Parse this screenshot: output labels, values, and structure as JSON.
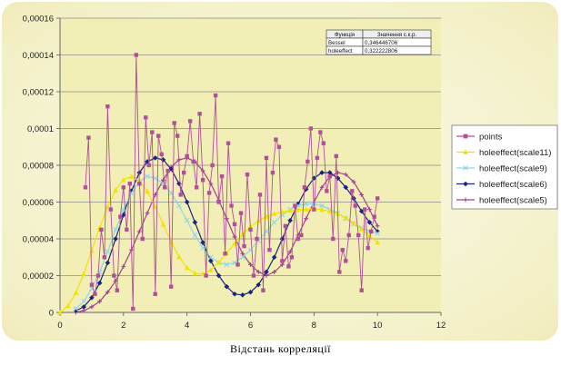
{
  "chart_data": {
    "type": "line",
    "xlabel": "Відстань корреляції",
    "ylabel": "",
    "xlim": [
      0,
      12
    ],
    "ylim": [
      0,
      0.00016
    ],
    "x_ticks": [
      "0",
      "2",
      "4",
      "6",
      "8",
      "10",
      "12"
    ],
    "y_ticks": [
      "0",
      "0,00002",
      "0,00004",
      "0,00006",
      "0,00008",
      "0,0001",
      "0,00012",
      "0,00014",
      "0,00016"
    ],
    "grid": "horizontal",
    "legend_position": "right",
    "plot_background": "#f2efb6",
    "info_table": {
      "headers": [
        "Функція",
        "Значення с.к.р."
      ],
      "rows": [
        [
          "Bessel",
          "0,346446706"
        ],
        [
          "holeeffect",
          "0,322222806"
        ]
      ]
    },
    "series": [
      {
        "name": "points",
        "color": "#b0509a",
        "marker": "square",
        "x": [
          0.8,
          0.9,
          1.0,
          1.1,
          1.2,
          1.3,
          1.4,
          1.5,
          1.6,
          1.7,
          1.8,
          1.9,
          2.0,
          2.1,
          2.2,
          2.3,
          2.4,
          2.5,
          2.6,
          2.7,
          2.8,
          2.9,
          3.0,
          3.1,
          3.2,
          3.3,
          3.4,
          3.5,
          3.6,
          3.7,
          3.8,
          3.9,
          4.0,
          4.1,
          4.2,
          4.3,
          4.4,
          4.5,
          4.6,
          4.7,
          4.8,
          4.9,
          5.0,
          5.1,
          5.2,
          5.3,
          5.4,
          5.5,
          5.6,
          5.7,
          5.8,
          5.9,
          6.0,
          6.1,
          6.2,
          6.3,
          6.4,
          6.5,
          6.6,
          6.7,
          6.8,
          6.9,
          7.0,
          7.1,
          7.2,
          7.3,
          7.4,
          7.5,
          7.6,
          7.7,
          7.8,
          7.9,
          8.0,
          8.1,
          8.2,
          8.3,
          8.4,
          8.5,
          8.6,
          8.7,
          8.8,
          8.9,
          9.0,
          9.1,
          9.2,
          9.3,
          9.4,
          9.5,
          9.6,
          9.7,
          9.8,
          9.9,
          10.0
        ],
        "y": [
          6.8e-05,
          9.5e-05,
          1.5e-05,
          1e-05,
          2e-05,
          4.5e-05,
          3e-05,
          0.000112,
          5.6e-05,
          2e-05,
          1.2e-05,
          5.2e-05,
          6.8e-05,
          4.5e-05,
          7e-05,
          2e-06,
          0.00014,
          7e-05,
          4e-05,
          0.000106,
          8e-05,
          9.8e-05,
          1e-05,
          9.6e-05,
          8.6e-05,
          6.8e-05,
          7.7e-05,
          1.4e-05,
          0.000103,
          9.6e-05,
          6.4e-05,
          7.6e-05,
          8.5e-05,
          0.000104,
          8.2e-05,
          6.8e-05,
          0.000108,
          7.2e-05,
          2e-05,
          6.5e-05,
          8e-05,
          0.000118,
          6e-05,
          7.4e-05,
          3.2e-05,
          9.2e-05,
          5.8e-05,
          4.8e-05,
          2.6e-05,
          5.4e-05,
          3.6e-05,
          7.5e-05,
          4.5e-05,
          2e-05,
          4e-05,
          6.4e-05,
          1.2e-05,
          8.4e-05,
          3.4e-05,
          7.6e-05,
          9.4e-05,
          9e-05,
          2.8e-05,
          4.7e-05,
          2.5e-05,
          3e-05,
          5.8e-05,
          4e-05,
          4.2e-05,
          6.8e-05,
          8.2e-05,
          0.0001,
          5.6e-05,
          8.4e-05,
          9.8e-05,
          9.2e-05,
          6.6e-05,
          7.4e-05,
          4e-05,
          8.5e-05,
          2.2e-05,
          3.4e-05,
          2.8e-05,
          4.2e-05,
          6.6e-05,
          5.8e-05,
          4.2e-05,
          1.2e-05,
          5.6e-05,
          3.5e-05,
          4.4e-05,
          5.2e-05,
          6.2e-05
        ]
      },
      {
        "name": "holeeffect(scale11)",
        "color": "#f2e200",
        "marker": "triangle",
        "x": [
          0,
          0.25,
          0.5,
          0.75,
          1,
          1.25,
          1.5,
          1.75,
          2,
          2.25,
          2.5,
          2.75,
          3,
          3.25,
          3.5,
          3.75,
          4,
          4.25,
          4.5,
          4.75,
          5,
          5.25,
          5.5,
          5.75,
          6,
          6.25,
          6.5,
          6.75,
          7,
          7.25,
          7.5,
          7.75,
          8,
          8.25,
          8.5,
          8.75,
          9,
          9.25,
          9.5,
          9.75,
          10
        ],
        "y": [
          0,
          3.5e-06,
          1.07e-05,
          2.1e-05,
          3.35e-05,
          4.61e-05,
          5.75e-05,
          6.65e-05,
          7.22e-05,
          7.39e-05,
          7.16e-05,
          6.58e-05,
          5.75e-05,
          4.79e-05,
          3.84e-05,
          3.02e-05,
          2.43e-05,
          2.12e-05,
          2.09e-05,
          2.31e-05,
          2.71e-05,
          3.22e-05,
          3.75e-05,
          4.24e-05,
          4.66e-05,
          4.98e-05,
          5.21e-05,
          5.37e-05,
          5.46e-05,
          5.53e-05,
          5.58e-05,
          5.61e-05,
          5.62e-05,
          5.59e-05,
          5.51e-05,
          5.36e-05,
          5.14e-05,
          4.85e-05,
          4.52e-05,
          4.16e-05,
          3.81e-05
        ]
      },
      {
        "name": "holeeffect(scale9)",
        "color": "#8fd6e8",
        "marker": "x",
        "x": [
          0.5,
          0.75,
          1,
          1.25,
          1.5,
          1.75,
          2,
          2.25,
          2.5,
          2.75,
          3,
          3.25,
          3.5,
          3.75,
          4,
          4.25,
          4.5,
          4.75,
          5,
          5.25,
          5.5,
          5.75,
          6,
          6.25,
          6.5,
          6.75,
          7,
          7.25,
          7.5,
          7.75,
          8,
          8.25,
          8.5,
          8.75,
          9,
          9.25,
          9.5,
          9.75,
          10
        ],
        "y": [
          2e-06,
          6e-06,
          1.3e-05,
          2.2e-05,
          3.3e-05,
          4.5e-05,
          5.6e-05,
          6.5e-05,
          7.1e-05,
          7.4e-05,
          7.3e-05,
          7e-05,
          6.5e-05,
          5.8e-05,
          5e-05,
          4.2e-05,
          3.5e-05,
          3e-05,
          2.7e-05,
          2.6e-05,
          2.7e-05,
          3e-05,
          3.4e-05,
          3.9e-05,
          4.4e-05,
          4.9e-05,
          5.3e-05,
          5.6e-05,
          5.8e-05,
          5.9e-05,
          5.9e-05,
          5.8e-05,
          5.6e-05,
          5.4e-05,
          5.1e-05,
          4.8e-05,
          4.6e-05,
          4.4e-05,
          4.3e-05
        ]
      },
      {
        "name": "holeeffect(scale6)",
        "color": "#1a237e",
        "marker": "diamond",
        "x": [
          0.5,
          0.75,
          1,
          1.25,
          1.5,
          1.75,
          2,
          2.25,
          2.5,
          2.75,
          3,
          3.25,
          3.5,
          3.75,
          4,
          4.25,
          4.5,
          4.75,
          5,
          5.25,
          5.5,
          5.75,
          6,
          6.25,
          6.5,
          6.75,
          7,
          7.25,
          7.5,
          7.75,
          8,
          8.25,
          8.5,
          8.75,
          9,
          9.25,
          9.5,
          9.75,
          10
        ],
        "y": [
          1e-06,
          3e-06,
          8e-06,
          1.6e-05,
          2.7e-05,
          4e-05,
          5.3e-05,
          6.6e-05,
          7.6e-05,
          8.2e-05,
          8.4e-05,
          8.3e-05,
          7.8e-05,
          7e-05,
          6e-05,
          4.9e-05,
          3.8e-05,
          2.8e-05,
          2e-05,
          1.4e-05,
          1e-05,
          9.5e-06,
          1.1e-05,
          1.5e-05,
          2.2e-05,
          3e-05,
          4e-05,
          5e-05,
          5.9e-05,
          6.7e-05,
          7.3e-05,
          7.6e-05,
          7.6e-05,
          7.3e-05,
          6.8e-05,
          6.2e-05,
          5.5e-05,
          4.9e-05,
          4.4e-05
        ]
      },
      {
        "name": "holeeffect(scale5)",
        "color": "#a0408a",
        "marker": "plus",
        "x": [
          0.5,
          0.75,
          1,
          1.25,
          1.5,
          1.75,
          2,
          2.25,
          2.5,
          2.75,
          3,
          3.25,
          3.5,
          3.75,
          4,
          4.25,
          4.5,
          4.75,
          5,
          5.25,
          5.5,
          5.75,
          6,
          6.25,
          6.5,
          6.75,
          7,
          7.25,
          7.5,
          7.75,
          8,
          8.25,
          8.5,
          8.75,
          9,
          9.25,
          9.5,
          9.75,
          10
        ],
        "y": [
          0,
          1e-06,
          3e-06,
          6e-06,
          1.1e-05,
          1.7e-05,
          2.5e-05,
          3.4e-05,
          4.4e-05,
          5.4e-05,
          6.4e-05,
          7.2e-05,
          7.9e-05,
          8.3e-05,
          8.4e-05,
          8.2e-05,
          7.7e-05,
          7e-05,
          6.1e-05,
          5.1e-05,
          4.1e-05,
          3.2e-05,
          2.6e-05,
          2.2e-05,
          2e-05,
          2.2e-05,
          2.6e-05,
          3.3e-05,
          4.2e-05,
          5.1e-05,
          6e-05,
          6.8e-05,
          7.4e-05,
          7.6e-05,
          7.5e-05,
          7.1e-05,
          6.4e-05,
          5.6e-05,
          4.7e-05
        ]
      }
    ]
  }
}
